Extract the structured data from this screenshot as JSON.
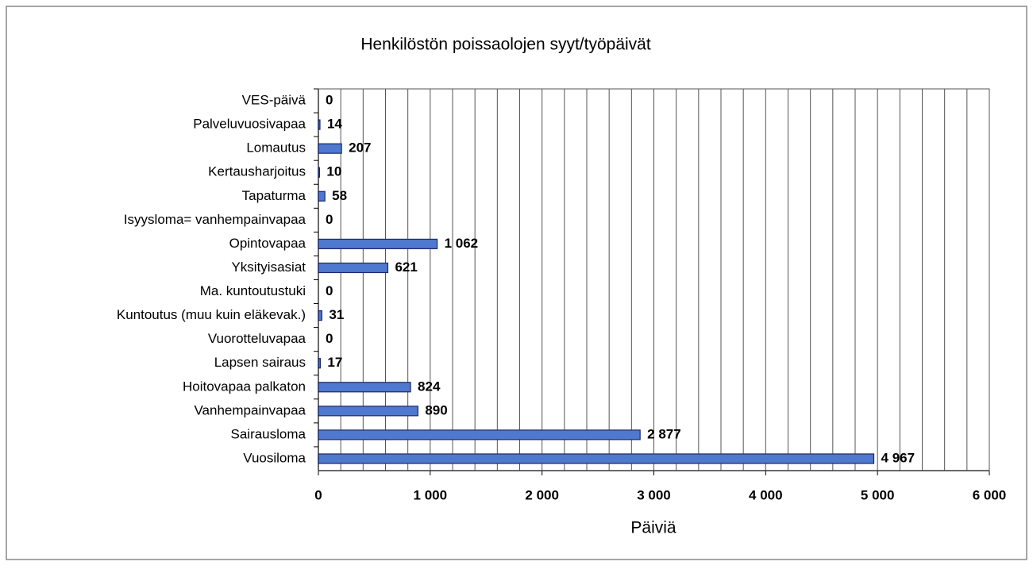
{
  "chart_data": {
    "type": "bar",
    "orientation": "horizontal",
    "title": "Henkilöstön poissaolojen syyt/työpäivät",
    "xlabel": "Päiviä",
    "categories": [
      "VES-päivä",
      "Palveluvuosivapaa",
      "Lomautus",
      "Kertausharjoitus",
      "Tapaturma",
      "Isyysloma= vanhempainvapaa",
      "Opintovapaa",
      "Yksityisasiat",
      "Ma. kuntoutustuki",
      "Kuntoutus (muu kuin eläkevak.)",
      "Vuorotteluvapaa",
      "Lapsen sairaus",
      "Hoitovapaa palkaton",
      "Vanhempainvapaa",
      "Sairausloma",
      "Vuosiloma"
    ],
    "values": [
      0,
      14,
      207,
      10,
      58,
      0,
      1062,
      621,
      0,
      31,
      0,
      17,
      824,
      890,
      2877,
      4967
    ],
    "value_labels": [
      "0",
      "14",
      "207",
      "10",
      "58",
      "0",
      "1 062",
      "621",
      "0",
      "31",
      "0",
      "17",
      "824",
      "890",
      "2 877",
      "4 967"
    ],
    "color": "#4f78cf",
    "xlim": [
      0,
      6000
    ],
    "xticks": [
      0,
      {
        "value": 1000,
        "label": "1 000"
      },
      {
        "value": 2000,
        "label": "2 000"
      },
      {
        "value": 3000,
        "label": "3 000"
      },
      {
        "value": 4000,
        "label": "4 000"
      },
      {
        "value": 5000,
        "label": "5 000"
      },
      {
        "value": 6000,
        "label": "6 000"
      }
    ],
    "minor_xticks": [
      200,
      400,
      600,
      800,
      1200,
      1400,
      1600,
      1800,
      2200,
      2400,
      2600,
      2800,
      3200,
      3400,
      3600,
      3800,
      4200,
      4400,
      4600,
      4800,
      5200,
      5400,
      5600,
      5800
    ],
    "grid": true
  }
}
